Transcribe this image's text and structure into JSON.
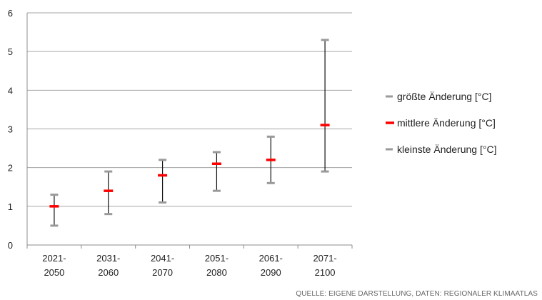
{
  "chart_data": {
    "type": "scatter",
    "categories": [
      [
        "2021-",
        "2050"
      ],
      [
        "2031-",
        "2060"
      ],
      [
        "2041-",
        "2070"
      ],
      [
        "2051-",
        "2080"
      ],
      [
        "2061-",
        "2090"
      ],
      [
        "2071-",
        "2100"
      ]
    ],
    "series": [
      {
        "name": "größte Änderung [°C]",
        "color": "#9a9a9a",
        "values": [
          1.3,
          1.9,
          2.2,
          2.4,
          2.8,
          5.3
        ]
      },
      {
        "name": "mittlere Änderung [°C]",
        "color": "#ff0000",
        "values": [
          1.0,
          1.4,
          1.8,
          2.1,
          2.2,
          3.1
        ]
      },
      {
        "name": "kleinste Änderung [°C]",
        "color": "#9a9a9a",
        "values": [
          0.5,
          0.8,
          1.1,
          1.4,
          1.6,
          1.9
        ]
      }
    ],
    "ylim": [
      0,
      6
    ],
    "yticks": [
      "0",
      "1",
      "2",
      "3",
      "4",
      "5",
      "6"
    ],
    "grid": true,
    "legend_position": "right",
    "title": "",
    "xlabel": "",
    "ylabel": ""
  },
  "source_note": "QUELLE: EIGENE DARSTELLUNG, DATEN: REGIONALER KLIMAATLAS"
}
